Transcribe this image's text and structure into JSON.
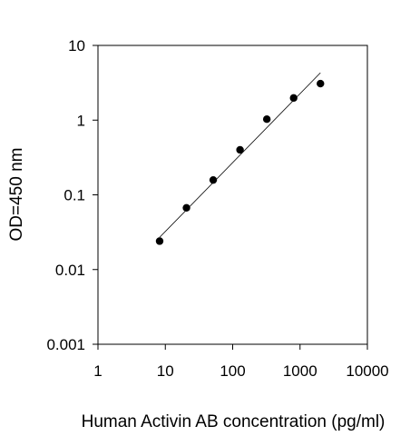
{
  "chart_data": {
    "type": "scatter",
    "title": "",
    "xlabel": "Human Activin AB concentration (pg/ml)",
    "ylabel": "OD=450 nm",
    "x_scale": "log",
    "y_scale": "log",
    "xlim": [
      1,
      10000
    ],
    "ylim": [
      0.001,
      10
    ],
    "x_ticks": [
      1,
      10,
      100,
      1000,
      10000
    ],
    "x_tick_labels": [
      "1",
      "10",
      "100",
      "1000",
      "10000"
    ],
    "y_ticks": [
      0.001,
      0.01,
      0.1,
      1,
      10
    ],
    "y_tick_labels": [
      "0.001",
      "0.01",
      "0.1",
      "1",
      "10"
    ],
    "grid": false,
    "legend": "none",
    "series": [
      {
        "marker": "circle",
        "color": "#000000",
        "x": [
          8.23,
          20.6,
          51.4,
          128.6,
          321.5,
          803.7,
          2009.3
        ],
        "y": [
          0.024,
          0.067,
          0.158,
          0.4,
          1.03,
          1.98,
          3.08
        ]
      }
    ],
    "fit_line": {
      "color": "#000000",
      "x": [
        8.23,
        2009.3
      ],
      "y": [
        0.027,
        4.3
      ]
    }
  }
}
